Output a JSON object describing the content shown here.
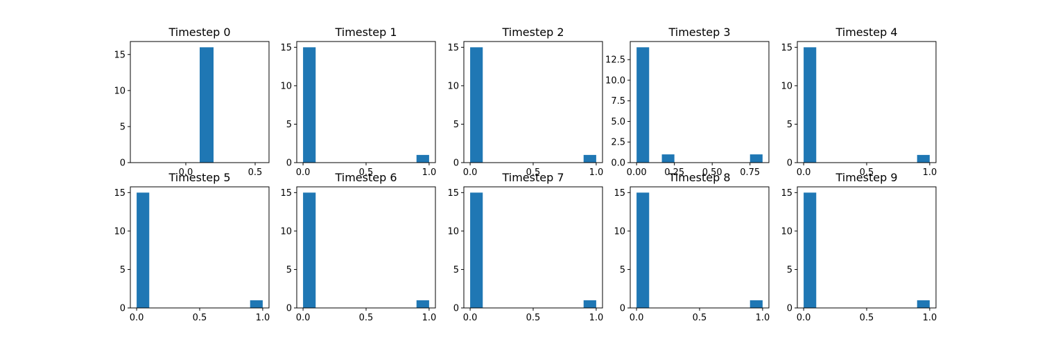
{
  "colors": {
    "bar": "#1f77b4"
  },
  "chart_data": [
    {
      "type": "bar",
      "title": "Timestep 0",
      "bins": [
        {
          "x0": 0.1,
          "x1": 0.2,
          "count": 16
        }
      ],
      "xlim": [
        -0.4,
        0.6
      ],
      "ylim": [
        0,
        16.8
      ],
      "xticks": [
        {
          "v": 0.0,
          "label": "0.0"
        },
        {
          "v": 0.5,
          "label": "0.5"
        }
      ],
      "yticks": [
        {
          "v": 0,
          "label": "0"
        },
        {
          "v": 5,
          "label": "5"
        },
        {
          "v": 10,
          "label": "10"
        },
        {
          "v": 15,
          "label": "15"
        }
      ]
    },
    {
      "type": "bar",
      "title": "Timestep 1",
      "bins": [
        {
          "x0": 0.0,
          "x1": 0.1,
          "count": 15
        },
        {
          "x0": 0.9,
          "x1": 1.0,
          "count": 1
        }
      ],
      "xlim": [
        -0.05,
        1.05
      ],
      "ylim": [
        0,
        15.75
      ],
      "xticks": [
        {
          "v": 0.0,
          "label": "0.0"
        },
        {
          "v": 0.5,
          "label": "0.5"
        },
        {
          "v": 1.0,
          "label": "1.0"
        }
      ],
      "yticks": [
        {
          "v": 0,
          "label": "0"
        },
        {
          "v": 5,
          "label": "5"
        },
        {
          "v": 10,
          "label": "10"
        },
        {
          "v": 15,
          "label": "15"
        }
      ]
    },
    {
      "type": "bar",
      "title": "Timestep 2",
      "bins": [
        {
          "x0": 0.0,
          "x1": 0.1,
          "count": 15
        },
        {
          "x0": 0.9,
          "x1": 1.0,
          "count": 1
        }
      ],
      "xlim": [
        -0.05,
        1.05
      ],
      "ylim": [
        0,
        15.75
      ],
      "xticks": [
        {
          "v": 0.0,
          "label": "0.0"
        },
        {
          "v": 0.5,
          "label": "0.5"
        },
        {
          "v": 1.0,
          "label": "1.0"
        }
      ],
      "yticks": [
        {
          "v": 0,
          "label": "0"
        },
        {
          "v": 5,
          "label": "5"
        },
        {
          "v": 10,
          "label": "10"
        },
        {
          "v": 15,
          "label": "15"
        }
      ]
    },
    {
      "type": "bar",
      "title": "Timestep 3",
      "bins": [
        {
          "x0": 0.0,
          "x1": 0.083,
          "count": 14
        },
        {
          "x0": 0.167,
          "x1": 0.25,
          "count": 1
        },
        {
          "x0": 0.75,
          "x1": 0.833,
          "count": 1
        }
      ],
      "xlim": [
        -0.042,
        0.875
      ],
      "ylim": [
        0,
        14.7
      ],
      "xticks": [
        {
          "v": 0.0,
          "label": "0.00"
        },
        {
          "v": 0.25,
          "label": "0.25"
        },
        {
          "v": 0.5,
          "label": "0.50"
        },
        {
          "v": 0.75,
          "label": "0.75"
        }
      ],
      "yticks": [
        {
          "v": 0,
          "label": "0.0"
        },
        {
          "v": 2.5,
          "label": "2.5"
        },
        {
          "v": 5,
          "label": "5.0"
        },
        {
          "v": 7.5,
          "label": "7.5"
        },
        {
          "v": 10,
          "label": "10.0"
        },
        {
          "v": 12.5,
          "label": "12.5"
        }
      ]
    },
    {
      "type": "bar",
      "title": "Timestep 4",
      "bins": [
        {
          "x0": 0.0,
          "x1": 0.1,
          "count": 15
        },
        {
          "x0": 0.9,
          "x1": 1.0,
          "count": 1
        }
      ],
      "xlim": [
        -0.05,
        1.05
      ],
      "ylim": [
        0,
        15.75
      ],
      "xticks": [
        {
          "v": 0.0,
          "label": "0.0"
        },
        {
          "v": 0.5,
          "label": "0.5"
        },
        {
          "v": 1.0,
          "label": "1.0"
        }
      ],
      "yticks": [
        {
          "v": 0,
          "label": "0"
        },
        {
          "v": 5,
          "label": "5"
        },
        {
          "v": 10,
          "label": "10"
        },
        {
          "v": 15,
          "label": "15"
        }
      ]
    },
    {
      "type": "bar",
      "title": "Timestep 5",
      "bins": [
        {
          "x0": 0.0,
          "x1": 0.1,
          "count": 15
        },
        {
          "x0": 0.9,
          "x1": 1.0,
          "count": 1
        }
      ],
      "xlim": [
        -0.05,
        1.05
      ],
      "ylim": [
        0,
        15.75
      ],
      "xticks": [
        {
          "v": 0.0,
          "label": "0.0"
        },
        {
          "v": 0.5,
          "label": "0.5"
        },
        {
          "v": 1.0,
          "label": "1.0"
        }
      ],
      "yticks": [
        {
          "v": 0,
          "label": "0"
        },
        {
          "v": 5,
          "label": "5"
        },
        {
          "v": 10,
          "label": "10"
        },
        {
          "v": 15,
          "label": "15"
        }
      ]
    },
    {
      "type": "bar",
      "title": "Timestep 6",
      "bins": [
        {
          "x0": 0.0,
          "x1": 0.1,
          "count": 15
        },
        {
          "x0": 0.9,
          "x1": 1.0,
          "count": 1
        }
      ],
      "xlim": [
        -0.05,
        1.05
      ],
      "ylim": [
        0,
        15.75
      ],
      "xticks": [
        {
          "v": 0.0,
          "label": "0.0"
        },
        {
          "v": 0.5,
          "label": "0.5"
        },
        {
          "v": 1.0,
          "label": "1.0"
        }
      ],
      "yticks": [
        {
          "v": 0,
          "label": "0"
        },
        {
          "v": 5,
          "label": "5"
        },
        {
          "v": 10,
          "label": "10"
        },
        {
          "v": 15,
          "label": "15"
        }
      ]
    },
    {
      "type": "bar",
      "title": "Timestep 7",
      "bins": [
        {
          "x0": 0.0,
          "x1": 0.1,
          "count": 15
        },
        {
          "x0": 0.9,
          "x1": 1.0,
          "count": 1
        }
      ],
      "xlim": [
        -0.05,
        1.05
      ],
      "ylim": [
        0,
        15.75
      ],
      "xticks": [
        {
          "v": 0.0,
          "label": "0.0"
        },
        {
          "v": 0.5,
          "label": "0.5"
        },
        {
          "v": 1.0,
          "label": "1.0"
        }
      ],
      "yticks": [
        {
          "v": 0,
          "label": "0"
        },
        {
          "v": 5,
          "label": "5"
        },
        {
          "v": 10,
          "label": "10"
        },
        {
          "v": 15,
          "label": "15"
        }
      ]
    },
    {
      "type": "bar",
      "title": "Timestep 8",
      "bins": [
        {
          "x0": 0.0,
          "x1": 0.1,
          "count": 15
        },
        {
          "x0": 0.9,
          "x1": 1.0,
          "count": 1
        }
      ],
      "xlim": [
        -0.05,
        1.05
      ],
      "ylim": [
        0,
        15.75
      ],
      "xticks": [
        {
          "v": 0.0,
          "label": "0.0"
        },
        {
          "v": 0.5,
          "label": "0.5"
        },
        {
          "v": 1.0,
          "label": "1.0"
        }
      ],
      "yticks": [
        {
          "v": 0,
          "label": "0"
        },
        {
          "v": 5,
          "label": "5"
        },
        {
          "v": 10,
          "label": "10"
        },
        {
          "v": 15,
          "label": "15"
        }
      ]
    },
    {
      "type": "bar",
      "title": "Timestep 9",
      "bins": [
        {
          "x0": 0.0,
          "x1": 0.1,
          "count": 15
        },
        {
          "x0": 0.9,
          "x1": 1.0,
          "count": 1
        }
      ],
      "xlim": [
        -0.05,
        1.05
      ],
      "ylim": [
        0,
        15.75
      ],
      "xticks": [
        {
          "v": 0.0,
          "label": "0.0"
        },
        {
          "v": 0.5,
          "label": "0.5"
        },
        {
          "v": 1.0,
          "label": "1.0"
        }
      ],
      "yticks": [
        {
          "v": 0,
          "label": "0"
        },
        {
          "v": 5,
          "label": "5"
        },
        {
          "v": 10,
          "label": "10"
        },
        {
          "v": 15,
          "label": "15"
        }
      ]
    }
  ]
}
